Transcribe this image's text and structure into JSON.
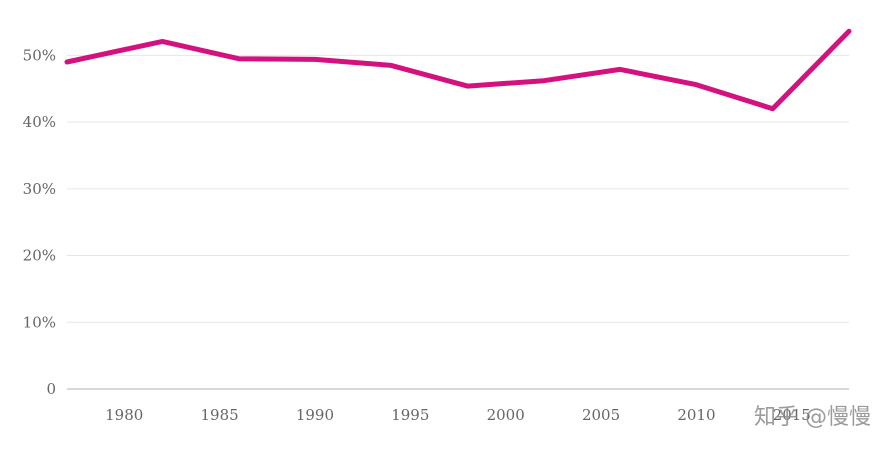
{
  "chart_data": {
    "type": "line",
    "title": "",
    "xlabel": "",
    "ylabel": "",
    "x": [
      1977,
      1982,
      1986,
      1990,
      1994,
      1998,
      2002,
      2006,
      2010,
      2014,
      2018
    ],
    "series": [
      {
        "values": [
          49.0,
          52.1,
          49.5,
          49.4,
          48.5,
          45.4,
          46.2,
          47.9,
          45.6,
          42.0,
          53.6
        ],
        "color": "#d3117f"
      }
    ],
    "xlim": [
      1977,
      2018
    ],
    "ylim": [
      0,
      55
    ],
    "x_ticks": [
      1980,
      1985,
      1990,
      1995,
      2000,
      2005,
      2010,
      2015
    ],
    "x_tick_labels": [
      "1980",
      "1985",
      "1990",
      "1995",
      "2000",
      "2005",
      "2010",
      "2015"
    ],
    "y_ticks": [
      0,
      10,
      20,
      30,
      40,
      50
    ],
    "y_tick_labels": [
      "0",
      "10%",
      "20%",
      "30%",
      "40%",
      "50%"
    ],
    "grid": true
  },
  "watermark": "知乎 @慢慢"
}
